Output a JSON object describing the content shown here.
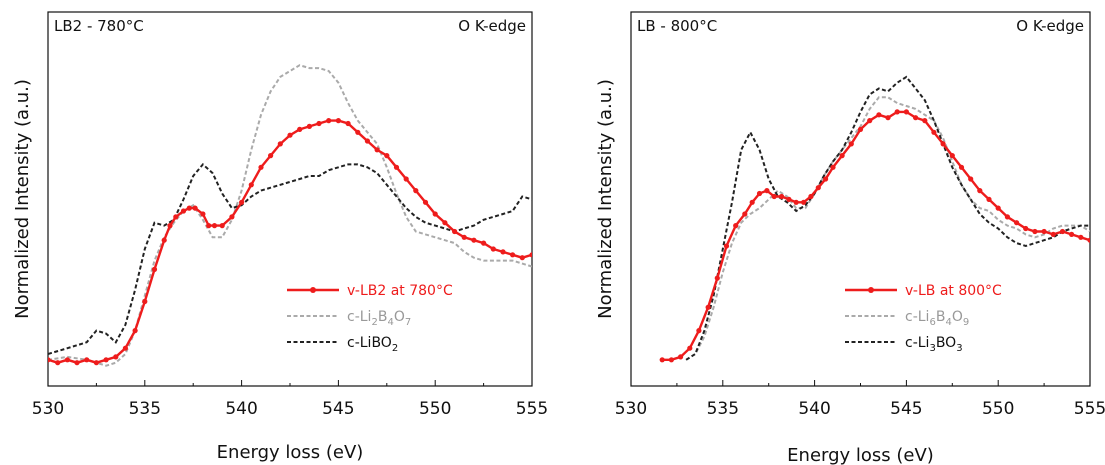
{
  "chart_data": [
    {
      "type": "line",
      "panel_label": "LB2 - 780°C",
      "edge_label": "O K-edge",
      "xlabel": "Energy loss (eV)",
      "ylabel": "Normalized Intensity (a.u.)",
      "xlim": [
        530,
        555
      ],
      "ylim": [
        0,
        1
      ],
      "xticks": [
        530,
        535,
        540,
        545,
        550,
        555
      ],
      "yticks": false,
      "grid": false,
      "legend_position": "bottom-right",
      "series": [
        {
          "name": "v-LB2 at 780°C",
          "name_parts": [
            [
              "v-LB2 at 780°C",
              ""
            ]
          ],
          "color": "#ee1c1c",
          "style": "solid",
          "markers": true,
          "x": [
            530,
            530.5,
            531,
            531.5,
            532,
            532.5,
            533,
            533.5,
            534,
            534.5,
            535,
            535.5,
            536,
            536.3,
            536.6,
            537,
            537.3,
            537.6,
            538,
            538.3,
            538.6,
            539,
            539.5,
            540,
            540.5,
            541,
            541.5,
            542,
            542.5,
            543,
            543.5,
            544,
            544.5,
            545,
            545.5,
            546,
            546.5,
            547,
            547.5,
            548,
            548.5,
            549,
            549.5,
            550,
            550.5,
            551,
            551.5,
            552,
            552.5,
            553,
            553.5,
            554,
            554.5,
            555
          ],
          "y": [
            0.0,
            -0.01,
            0.0,
            -0.01,
            0.0,
            -0.01,
            0.0,
            0.01,
            0.04,
            0.1,
            0.2,
            0.31,
            0.41,
            0.46,
            0.49,
            0.51,
            0.52,
            0.52,
            0.5,
            0.46,
            0.46,
            0.46,
            0.49,
            0.54,
            0.6,
            0.66,
            0.7,
            0.74,
            0.77,
            0.79,
            0.8,
            0.81,
            0.82,
            0.82,
            0.81,
            0.78,
            0.75,
            0.72,
            0.7,
            0.66,
            0.62,
            0.58,
            0.54,
            0.5,
            0.47,
            0.44,
            0.42,
            0.41,
            0.4,
            0.38,
            0.37,
            0.36,
            0.35,
            0.36
          ]
        },
        {
          "name": "c-Li2B4O7",
          "name_parts": [
            [
              "c-Li",
              ""
            ],
            [
              "2",
              "sub"
            ],
            [
              "B",
              ""
            ],
            [
              "4",
              "sub"
            ],
            [
              "O",
              ""
            ],
            [
              "7",
              "sub"
            ]
          ],
          "color": "#aaaaaa",
          "style": "dashed",
          "markers": false,
          "x": [
            530,
            531,
            532,
            532.5,
            533,
            533.5,
            534,
            534.5,
            535,
            535.5,
            536,
            536.5,
            537,
            537.5,
            538,
            538.5,
            539,
            539.5,
            540,
            540.5,
            541,
            541.5,
            542,
            542.5,
            543,
            543.5,
            544,
            544.5,
            545,
            545.5,
            546,
            546.5,
            547,
            547.5,
            548,
            548.5,
            549,
            549.5,
            550,
            550.5,
            551,
            551.5,
            552,
            552.5,
            553,
            553.5,
            554,
            554.5,
            555
          ],
          "y": [
            0.0,
            0.01,
            0.0,
            -0.01,
            -0.02,
            -0.01,
            0.02,
            0.1,
            0.22,
            0.34,
            0.42,
            0.47,
            0.51,
            0.53,
            0.48,
            0.42,
            0.42,
            0.48,
            0.58,
            0.72,
            0.84,
            0.92,
            0.97,
            0.99,
            1.01,
            1.0,
            1.0,
            0.99,
            0.95,
            0.88,
            0.82,
            0.78,
            0.74,
            0.66,
            0.57,
            0.49,
            0.44,
            0.43,
            0.42,
            0.41,
            0.4,
            0.37,
            0.35,
            0.34,
            0.34,
            0.34,
            0.34,
            0.33,
            0.32
          ]
        },
        {
          "name": "c-LiBO2",
          "name_parts": [
            [
              "c-LiBO",
              ""
            ],
            [
              "2",
              "sub"
            ]
          ],
          "color": "#222222",
          "style": "dashed",
          "markers": false,
          "x": [
            530,
            531,
            532,
            532.5,
            533,
            533.5,
            534,
            534.5,
            535,
            535.5,
            536,
            536.5,
            537,
            537.5,
            538,
            538.5,
            539,
            539.5,
            540,
            540.5,
            541,
            541.5,
            542,
            542.5,
            543,
            543.5,
            544,
            544.5,
            545,
            545.5,
            546,
            546.5,
            547,
            547.5,
            548,
            548.5,
            549,
            549.5,
            550,
            550.5,
            551,
            551.5,
            552,
            552.5,
            553,
            553.5,
            554,
            554.5,
            555
          ],
          "y": [
            0.02,
            0.04,
            0.06,
            0.1,
            0.09,
            0.06,
            0.12,
            0.24,
            0.38,
            0.47,
            0.46,
            0.48,
            0.55,
            0.63,
            0.67,
            0.64,
            0.57,
            0.52,
            0.53,
            0.56,
            0.58,
            0.59,
            0.6,
            0.61,
            0.62,
            0.63,
            0.63,
            0.65,
            0.66,
            0.67,
            0.67,
            0.66,
            0.64,
            0.6,
            0.56,
            0.52,
            0.49,
            0.47,
            0.46,
            0.45,
            0.44,
            0.45,
            0.46,
            0.48,
            0.49,
            0.5,
            0.51,
            0.56,
            0.55
          ]
        }
      ]
    },
    {
      "type": "line",
      "panel_label": "LB - 800°C",
      "edge_label": "O K-edge",
      "xlabel": "Energy loss (eV)",
      "ylabel": "Normalized Intensity (a.u.)",
      "xlim": [
        530,
        555
      ],
      "ylim": [
        0,
        1
      ],
      "xticks": [
        530,
        535,
        540,
        545,
        550,
        555
      ],
      "yticks": false,
      "grid": false,
      "legend_position": "bottom-right",
      "series": [
        {
          "name": "v-LB at 800°C",
          "name_parts": [
            [
              "v-LB at 800°C",
              ""
            ]
          ],
          "color": "#ee1c1c",
          "style": "solid",
          "markers": true,
          "x": [
            531.7,
            532.2,
            532.7,
            533.2,
            533.7,
            534.2,
            534.7,
            535.2,
            535.7,
            536.2,
            536.6,
            537,
            537.4,
            537.8,
            538.2,
            538.6,
            539,
            539.4,
            539.8,
            540.2,
            540.6,
            541,
            541.5,
            542,
            542.5,
            543,
            543.5,
            544,
            544.5,
            545,
            545.5,
            546,
            546.5,
            547,
            547.5,
            548,
            548.5,
            549,
            549.5,
            550,
            550.5,
            551,
            551.5,
            552,
            552.5,
            553,
            553.5,
            554,
            554.5,
            555
          ],
          "y": [
            0.0,
            0.0,
            0.01,
            0.04,
            0.1,
            0.18,
            0.28,
            0.39,
            0.46,
            0.5,
            0.54,
            0.57,
            0.58,
            0.56,
            0.56,
            0.55,
            0.54,
            0.54,
            0.56,
            0.59,
            0.62,
            0.66,
            0.7,
            0.74,
            0.79,
            0.82,
            0.84,
            0.83,
            0.85,
            0.85,
            0.83,
            0.82,
            0.78,
            0.74,
            0.7,
            0.66,
            0.62,
            0.58,
            0.55,
            0.52,
            0.49,
            0.47,
            0.45,
            0.44,
            0.44,
            0.43,
            0.44,
            0.43,
            0.42,
            0.41
          ]
        },
        {
          "name": "c-Li6B4O9",
          "name_parts": [
            [
              "c-Li",
              ""
            ],
            [
              "6",
              "sub"
            ],
            [
              "B",
              ""
            ],
            [
              "4",
              "sub"
            ],
            [
              "O",
              ""
            ],
            [
              "9",
              "sub"
            ]
          ],
          "color": "#aaaaaa",
          "style": "dashed",
          "markers": false,
          "x": [
            533,
            533.5,
            534,
            534.5,
            535,
            535.5,
            536,
            536.5,
            537,
            537.5,
            538,
            538.5,
            539,
            539.5,
            540,
            540.5,
            541,
            541.5,
            542,
            542.5,
            543,
            543.5,
            544,
            544.5,
            545,
            545.5,
            546,
            546.5,
            547,
            547.5,
            548,
            548.5,
            549,
            549.5,
            550,
            550.5,
            551,
            551.5,
            552,
            552.5,
            553,
            553.5,
            554,
            554.5,
            555
          ],
          "y": [
            0.0,
            0.02,
            0.08,
            0.18,
            0.3,
            0.4,
            0.47,
            0.5,
            0.52,
            0.55,
            0.58,
            0.56,
            0.52,
            0.52,
            0.57,
            0.63,
            0.68,
            0.72,
            0.76,
            0.8,
            0.86,
            0.9,
            0.9,
            0.88,
            0.87,
            0.86,
            0.84,
            0.82,
            0.76,
            0.68,
            0.6,
            0.55,
            0.52,
            0.51,
            0.48,
            0.46,
            0.45,
            0.43,
            0.42,
            0.43,
            0.45,
            0.46,
            0.46,
            0.46,
            0.44
          ]
        },
        {
          "name": "c-Li3BO3",
          "name_parts": [
            [
              "c-Li",
              ""
            ],
            [
              "3",
              "sub"
            ],
            [
              "BO",
              ""
            ],
            [
              "3",
              "sub"
            ]
          ],
          "color": "#222222",
          "style": "dashed",
          "markers": false,
          "x": [
            533,
            533.5,
            534,
            534.5,
            535,
            535.5,
            536,
            536.5,
            537,
            537.5,
            538,
            538.5,
            539,
            539.5,
            540,
            540.5,
            541,
            541.5,
            542,
            542.5,
            543,
            543.5,
            544,
            544.5,
            545,
            545.5,
            546,
            546.5,
            547,
            547.5,
            548,
            548.5,
            549,
            549.5,
            550,
            550.5,
            551,
            551.5,
            552,
            552.5,
            553,
            553.5,
            554,
            554.5,
            555
          ],
          "y": [
            0.0,
            0.02,
            0.1,
            0.22,
            0.38,
            0.54,
            0.72,
            0.78,
            0.72,
            0.62,
            0.56,
            0.54,
            0.51,
            0.53,
            0.57,
            0.63,
            0.68,
            0.72,
            0.78,
            0.85,
            0.91,
            0.93,
            0.92,
            0.95,
            0.97,
            0.93,
            0.89,
            0.82,
            0.74,
            0.66,
            0.6,
            0.55,
            0.5,
            0.47,
            0.45,
            0.42,
            0.4,
            0.39,
            0.4,
            0.41,
            0.42,
            0.44,
            0.45,
            0.46,
            0.46
          ]
        }
      ]
    }
  ]
}
